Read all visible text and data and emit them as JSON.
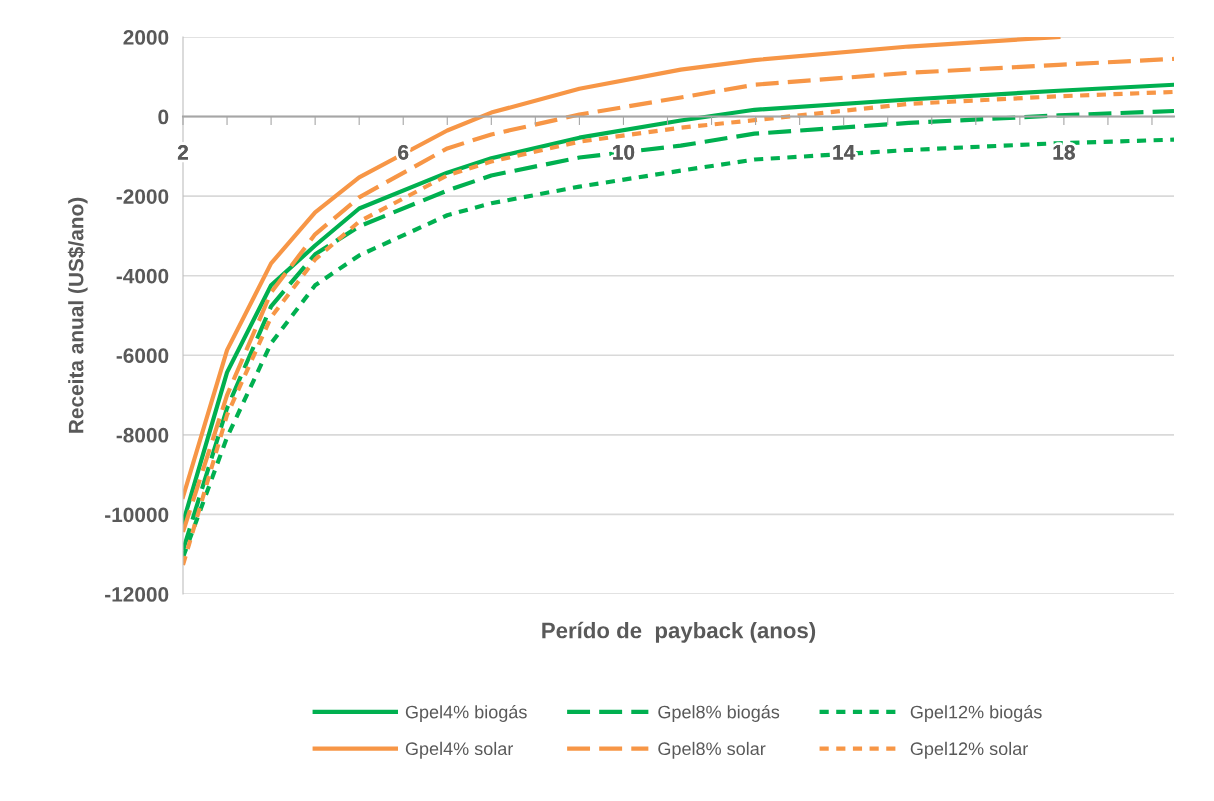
{
  "chart_data": {
    "type": "line",
    "xlabel": "Perído de  payback (anos)",
    "ylabel": "Receita anual (US$/ano)",
    "xlim": [
      2,
      20
    ],
    "ylim": [
      -12000,
      2000
    ],
    "xticks": [
      2,
      {
        "value": 2.8,
        "label": null
      },
      {
        "value": 3.6,
        "label": null
      },
      {
        "value": 4.4,
        "label": null
      },
      {
        "value": 5.2,
        "label": null
      },
      6,
      {
        "value": 6.8,
        "label": null
      },
      {
        "value": 7.6,
        "label": null
      },
      {
        "value": 8.4,
        "label": null
      },
      {
        "value": 9.2,
        "label": null
      },
      10,
      {
        "value": 10.8,
        "label": null
      },
      {
        "value": 11.6,
        "label": null
      },
      {
        "value": 12.4,
        "label": null
      },
      {
        "value": 13.2,
        "label": null
      },
      14,
      {
        "value": 14.8,
        "label": null
      },
      {
        "value": 15.6,
        "label": null
      },
      {
        "value": 16.4,
        "label": null
      },
      {
        "value": 17.2,
        "label": null
      },
      18,
      {
        "value": 18.8,
        "label": null
      },
      {
        "value": 19.6,
        "label": null
      }
    ],
    "yticks": [
      -12000,
      -10000,
      -8000,
      -6000,
      -4000,
      -2000,
      0,
      2000
    ],
    "grid": "y",
    "legend": "bottom",
    "marker": "none",
    "x": [
      2,
      2.8,
      3.6,
      4.4,
      5.2,
      6.8,
      7.6,
      9.2,
      11.04,
      12.38,
      15.18,
      17.9,
      20
    ],
    "series": [
      {
        "name": "Gpel4% biogás",
        "color": "#00b050",
        "line_style": "solid",
        "values": [
          -10210,
          -6430,
          -4240,
          -3240,
          -2310,
          -1410,
          -1050,
          -530,
          -100,
          170,
          430,
          650,
          800
        ]
      },
      {
        "name": "Gpel8% biogás",
        "color": "#00b050",
        "line_style": "dashed",
        "values": [
          -10900,
          -7330,
          -4770,
          -3460,
          -2760,
          -1860,
          -1480,
          -1030,
          -730,
          -430,
          -160,
          30,
          140
        ]
      },
      {
        "name": "Gpel12% biogás",
        "color": "#00b050",
        "line_style": "dotted",
        "values": [
          -11080,
          -8060,
          -5700,
          -4240,
          -3490,
          -2480,
          -2180,
          -1760,
          -1360,
          -1080,
          -840,
          -670,
          -580
        ]
      },
      {
        "name": "Gpel4% solar",
        "color": "#f79646",
        "line_style": "solid",
        "values": [
          -9560,
          -5870,
          -3690,
          -2410,
          -1530,
          -350,
          100,
          700,
          1180,
          1420,
          1760,
          2000,
          null
        ]
      },
      {
        "name": "Gpel8% solar",
        "color": "#f79646",
        "line_style": "dashed",
        "values": [
          -10440,
          -7000,
          -4420,
          -2960,
          -2030,
          -800,
          -450,
          50,
          480,
          800,
          1100,
          1300,
          1450
        ]
      },
      {
        "name": "Gpel12% solar",
        "color": "#f79646",
        "line_style": "dotted",
        "values": [
          -11270,
          -7500,
          -5040,
          -3590,
          -2640,
          -1480,
          -1130,
          -630,
          -280,
          -90,
          320,
          510,
          620
        ]
      }
    ]
  }
}
